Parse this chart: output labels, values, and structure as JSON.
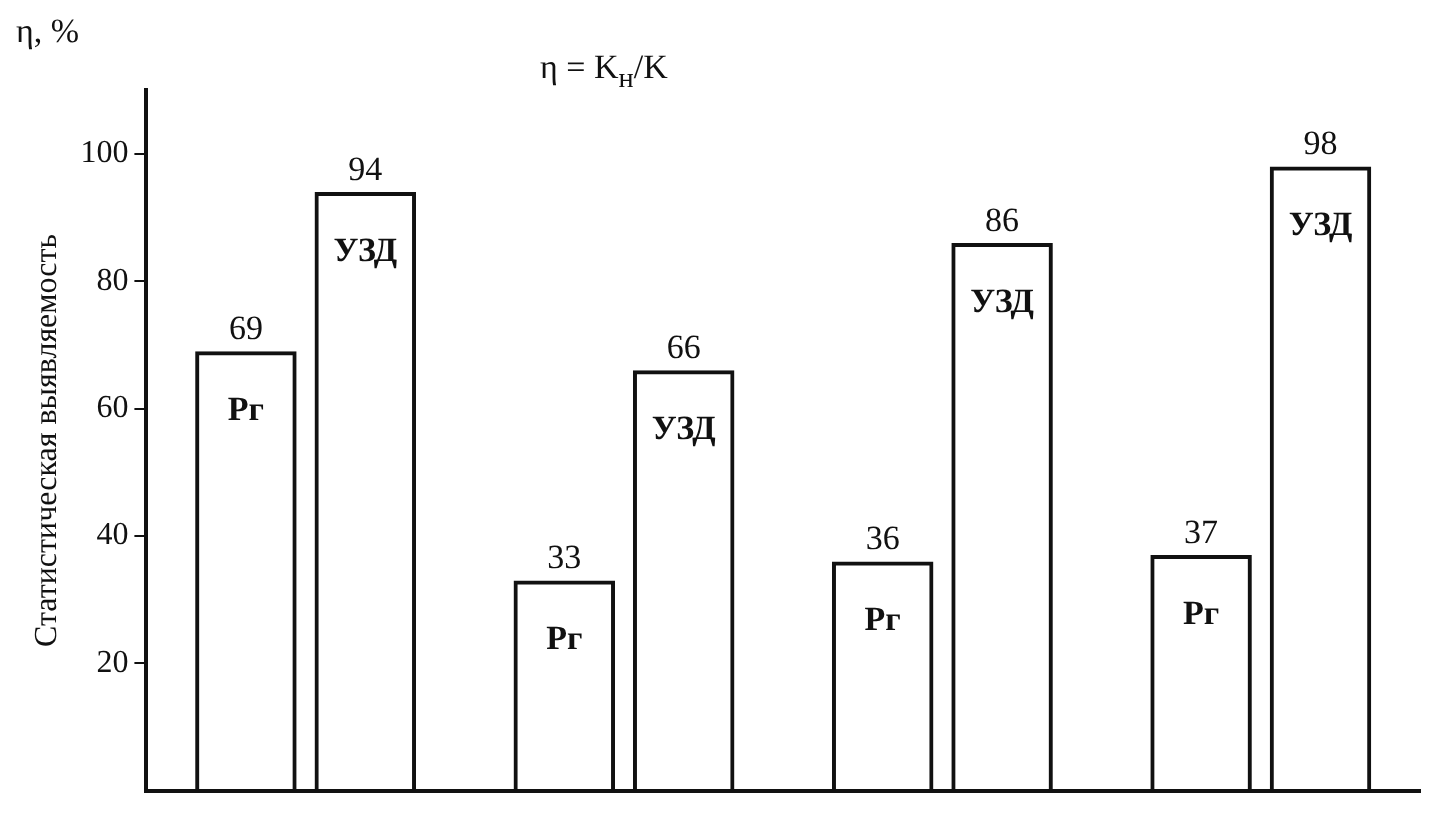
{
  "chart_data": {
    "type": "bar",
    "ylabel": "Статистическая выявляемость",
    "annotations": [
      "η, %",
      "η = K$_{н}$/K"
    ],
    "categories": [
      null,
      null,
      null,
      null
    ],
    "series": [
      {
        "name": "Рг",
        "color": "#111111",
        "values": [
          69,
          33,
          36,
          37
        ]
      },
      {
        "name": "УЗД",
        "color": "#111111",
        "values": [
          94,
          66,
          86,
          98
        ]
      }
    ],
    "ylim": [
      0,
      110
    ],
    "yticks": [
      20,
      40,
      60,
      80,
      100
    ],
    "grid": false,
    "legend": false,
    "data_labels": true,
    "tick_labels": "y"
  }
}
